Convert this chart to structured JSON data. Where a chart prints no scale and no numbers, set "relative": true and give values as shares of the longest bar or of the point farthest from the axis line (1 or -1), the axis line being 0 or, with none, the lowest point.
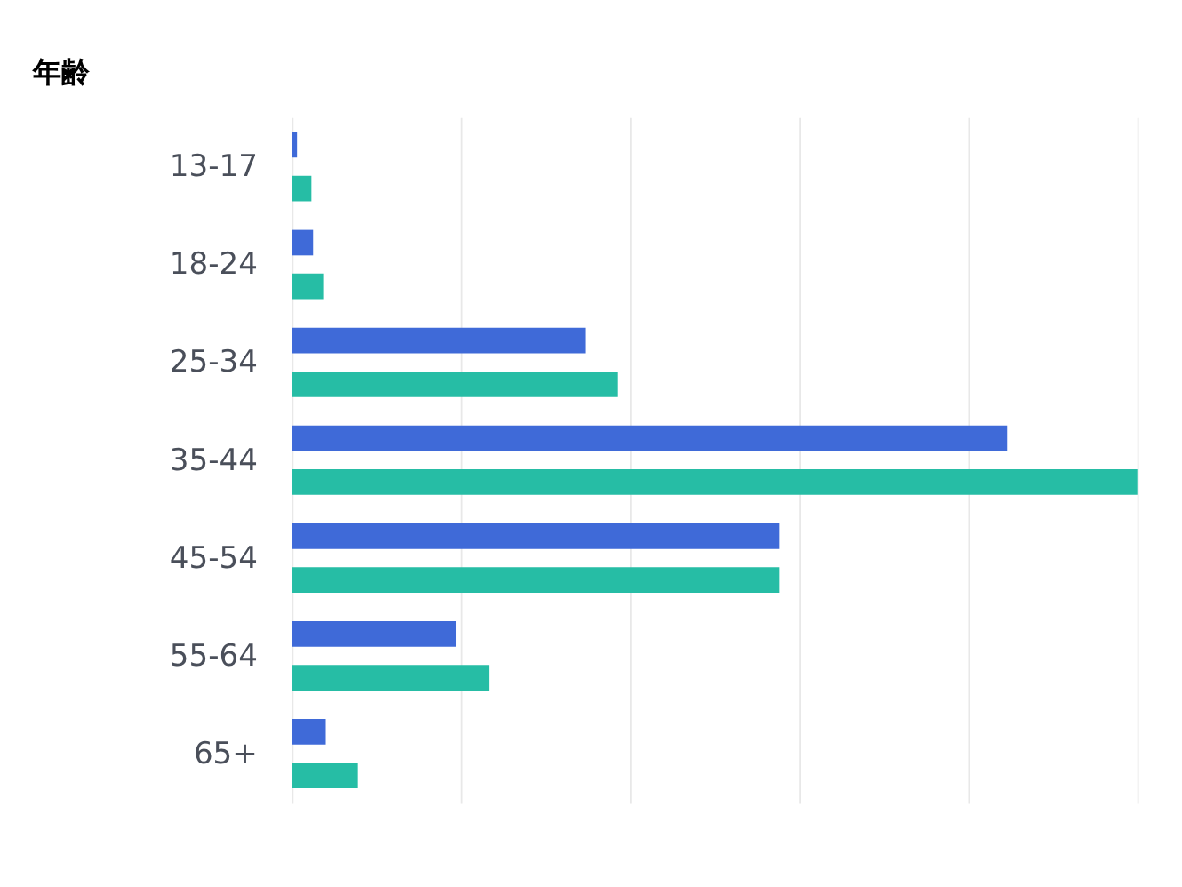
{
  "chart_data": {
    "type": "bar",
    "orientation": "horizontal",
    "relative": true,
    "title": "年齢",
    "grid": "x",
    "categories": [
      "13-17",
      "18-24",
      "25-34",
      "35-44",
      "45-54",
      "55-64",
      "65+"
    ],
    "series": [
      {
        "color": "#3f6ad8",
        "values": [
          0.006,
          0.025,
          0.347,
          0.846,
          0.577,
          0.194,
          0.04
        ]
      },
      {
        "color": "#26bda5",
        "values": [
          0.023,
          0.038,
          0.385,
          1,
          0.577,
          0.233,
          0.078
        ]
      }
    ]
  }
}
